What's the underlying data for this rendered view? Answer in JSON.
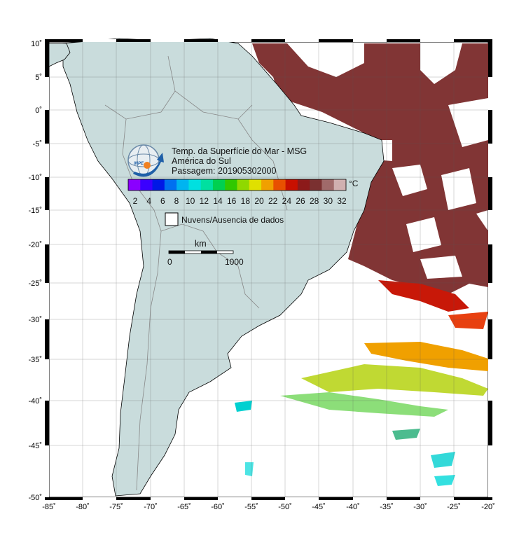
{
  "map": {
    "title": "Temp. da Superfície do Mar - MSG",
    "region": "América do Sul",
    "pass_label": "Passagem: 201905302000",
    "lon_range": [
      -85,
      -20
    ],
    "lat_range": [
      -50,
      10
    ],
    "lon_ticks": [
      "-85˚",
      "-80˚",
      "-75˚",
      "-70˚",
      "-65˚",
      "-60˚",
      "-55˚",
      "-50˚",
      "-45˚",
      "-40˚",
      "-35˚",
      "-30˚",
      "-25˚",
      "-20˚"
    ],
    "lat_ticks": [
      "10˚",
      "5˚",
      "0˚",
      "-5˚",
      "-10˚",
      "-15˚",
      "-20˚",
      "-25˚",
      "-30˚",
      "-35˚",
      "-40˚",
      "-45˚",
      "-50˚"
    ],
    "land_color": "#c9dcdc",
    "sst_high_color": "#7a2a2a"
  },
  "colorbar": {
    "labels": [
      "2",
      "4",
      "6",
      "8",
      "10",
      "12",
      "14",
      "16",
      "18",
      "20",
      "22",
      "24",
      "26",
      "28",
      "30",
      "32"
    ],
    "unit": "°C",
    "colors": [
      "#8a00ff",
      "#3a00ff",
      "#0018e6",
      "#0070f0",
      "#00b4f0",
      "#00e0e0",
      "#00e0a0",
      "#00d050",
      "#30c800",
      "#90d800",
      "#e0e000",
      "#f0a000",
      "#e85000",
      "#c81000",
      "#8c1a1a",
      "#7a3030",
      "#a06a6a",
      "#d0b0b0"
    ]
  },
  "legend": {
    "no_data_label": "Nuvens/Ausencia de dados"
  },
  "scale": {
    "unit": "km",
    "start": "0",
    "end": "1000"
  },
  "logo": {
    "text": "INPE"
  }
}
